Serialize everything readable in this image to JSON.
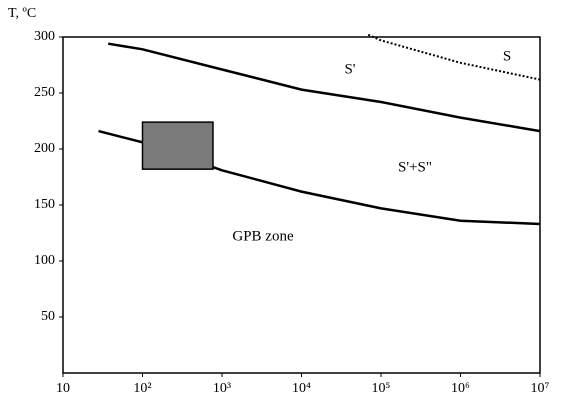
{
  "chart_data": {
    "type": "line",
    "y_label": "T, ºC",
    "xscale": "log",
    "xlim": [
      10,
      10000000
    ],
    "ylim": [
      0,
      300
    ],
    "xticks": [
      10,
      {
        "value": 100,
        "label": "10²"
      },
      {
        "value": 1000,
        "label": "10³"
      },
      {
        "value": 10000,
        "label": "10⁴"
      },
      {
        "value": 100000,
        "label": "10⁵"
      },
      {
        "value": 1000000,
        "label": "10⁶"
      },
      {
        "value": 10000000,
        "label": "10⁷"
      }
    ],
    "yticks": [
      50,
      100,
      150,
      200,
      250,
      300
    ],
    "series": [
      {
        "color": "#000000",
        "dashed": true,
        "x": [
          69000,
          100000,
          1000000,
          10000000
        ],
        "values": [
          302,
          297,
          277,
          262
        ]
      },
      {
        "color": "#000000",
        "dashed": false,
        "x": [
          37,
          100,
          1000,
          10000,
          100000,
          1000000,
          10000000
        ],
        "values": [
          294,
          289,
          271,
          253,
          242,
          228,
          216
        ]
      },
      {
        "color": "#000000",
        "dashed": false,
        "x": [
          28,
          100,
          1000,
          10000,
          100000,
          1000000,
          10000000
        ],
        "values": [
          216,
          206,
          181,
          162,
          147,
          136,
          133
        ]
      }
    ],
    "region": {
      "color": "#7a7a7a",
      "x": [
        100,
        770
      ],
      "y": [
        182,
        224
      ]
    },
    "annotations": [
      "S'",
      "S",
      "S'+S\"",
      "GPB zone"
    ]
  }
}
